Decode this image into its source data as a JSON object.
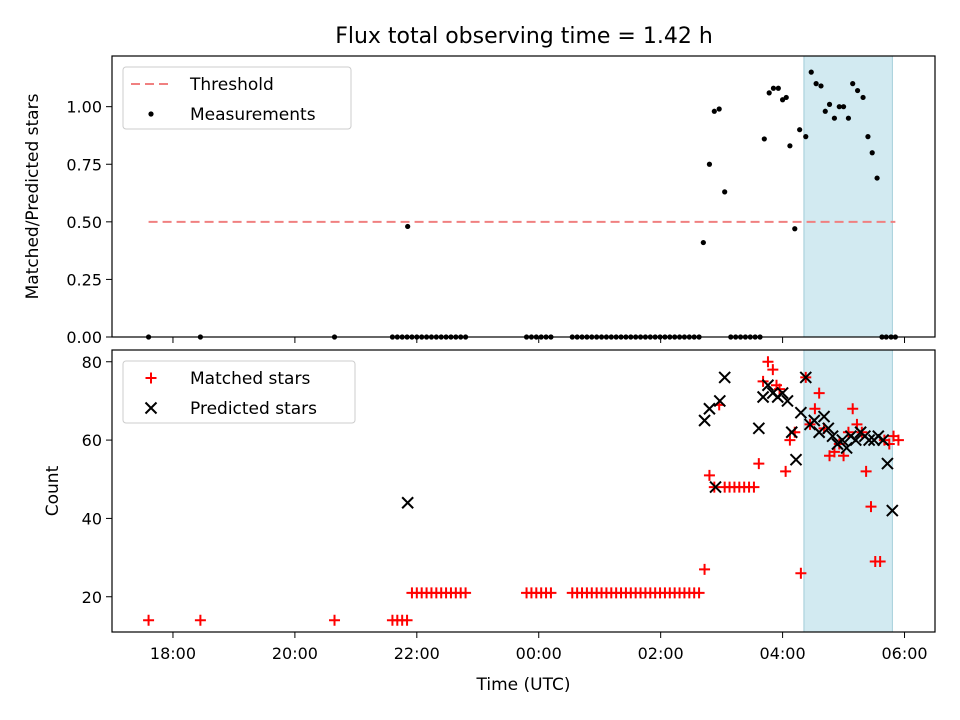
{
  "title": "Flux total observing time = 1.42 h",
  "xlabel": "Time (UTC)",
  "xticks": [
    {
      "h": 18,
      "label": "18:00"
    },
    {
      "h": 20,
      "label": "20:00"
    },
    {
      "h": 22,
      "label": "22:00"
    },
    {
      "h": 24,
      "label": "00:00"
    },
    {
      "h": 26,
      "label": "02:00"
    },
    {
      "h": 28,
      "label": "04:00"
    },
    {
      "h": 30,
      "label": "06:00"
    }
  ],
  "colors": {
    "threshold": "#f08080",
    "measurements": "#000000",
    "matched": "#ff0000",
    "predicted": "#000000",
    "span": "#add8e6"
  },
  "chart_data": [
    {
      "type": "scatter",
      "panel": "top",
      "ylabel": "Matched/Predicted stars",
      "xlim": [
        17.0,
        30.5
      ],
      "ylim": [
        0,
        1.22
      ],
      "yticks": [
        0.0,
        0.25,
        0.5,
        0.75,
        1.0
      ],
      "ytick_labels": [
        "0.00",
        "0.25",
        "0.50",
        "0.75",
        "1.00"
      ],
      "legend": {
        "position": "upper-left",
        "entries": [
          "Threshold",
          "Measurements"
        ]
      },
      "shaded_region_hours": [
        28.35,
        29.8
      ],
      "threshold": {
        "name": "Threshold",
        "value": 0.5,
        "x_range_hours": [
          17.6,
          29.85
        ]
      },
      "series": [
        {
          "name": "Measurements",
          "x_hours": [
            17.6,
            18.45,
            20.65,
            21.6,
            21.68,
            21.76,
            21.84,
            21.92,
            22.0,
            22.08,
            22.16,
            22.24,
            22.32,
            22.4,
            22.48,
            22.56,
            22.64,
            22.72,
            22.8,
            23.8,
            23.88,
            23.96,
            24.04,
            24.12,
            24.2,
            24.55,
            24.63,
            24.71,
            24.79,
            24.87,
            24.95,
            25.03,
            25.11,
            25.19,
            25.27,
            25.35,
            25.43,
            25.51,
            25.59,
            25.67,
            25.75,
            25.83,
            25.91,
            25.99,
            26.07,
            26.15,
            26.23,
            26.31,
            26.39,
            26.47,
            26.55,
            26.63,
            27.15,
            27.23,
            27.31,
            27.39,
            27.47,
            27.55,
            27.63,
            21.85,
            26.7,
            26.8,
            26.88,
            26.96,
            27.05,
            27.7,
            27.78,
            27.85,
            27.93,
            28.0,
            28.06,
            28.12,
            28.2,
            28.28,
            28.38,
            28.47,
            28.55,
            28.63,
            28.7,
            28.77,
            28.85,
            28.93,
            29.0,
            29.08,
            29.15,
            29.23,
            29.32,
            29.4,
            29.47,
            29.55,
            29.63,
            29.7,
            29.78,
            29.85
          ],
          "y": [
            0,
            0,
            0,
            0,
            0,
            0,
            0,
            0,
            0,
            0,
            0,
            0,
            0,
            0,
            0,
            0,
            0,
            0,
            0,
            0,
            0,
            0,
            0,
            0,
            0,
            0,
            0,
            0,
            0,
            0,
            0,
            0,
            0,
            0,
            0,
            0,
            0,
            0,
            0,
            0,
            0,
            0,
            0,
            0,
            0,
            0,
            0,
            0,
            0,
            0,
            0,
            0,
            0,
            0,
            0,
            0,
            0,
            0,
            0,
            0.48,
            0.41,
            0.75,
            0.98,
            0.99,
            0.63,
            0.86,
            1.06,
            1.08,
            1.08,
            1.03,
            1.04,
            0.83,
            0.47,
            0.9,
            0.87,
            1.15,
            1.1,
            1.09,
            0.98,
            1.01,
            0.95,
            1.0,
            1.0,
            0.95,
            1.1,
            1.07,
            1.04,
            0.87,
            0.8,
            0.69,
            0.0,
            0.0,
            0.0,
            0.0
          ]
        }
      ]
    },
    {
      "type": "scatter",
      "panel": "bottom",
      "ylabel": "Count",
      "xlabel": "Time (UTC)",
      "xlim": [
        17.0,
        30.5
      ],
      "ylim": [
        11,
        83
      ],
      "yticks": [
        20,
        40,
        60,
        80
      ],
      "ytick_labels": [
        "20",
        "40",
        "60",
        "80"
      ],
      "legend": {
        "position": "upper-left",
        "entries": [
          "Matched stars",
          "Predicted stars"
        ]
      },
      "shaded_region_hours": [
        28.35,
        29.8
      ],
      "series": [
        {
          "name": "Matched stars",
          "marker": "plus",
          "x_hours": [
            17.6,
            18.45,
            20.65,
            21.6,
            21.68,
            21.76,
            21.84,
            21.92,
            22.0,
            22.08,
            22.16,
            22.24,
            22.32,
            22.4,
            22.48,
            22.56,
            22.64,
            22.72,
            22.8,
            23.8,
            23.88,
            23.96,
            24.04,
            24.12,
            24.2,
            24.55,
            24.63,
            24.71,
            24.79,
            24.87,
            24.95,
            25.03,
            25.11,
            25.19,
            25.27,
            25.35,
            25.43,
            25.51,
            25.59,
            25.67,
            25.75,
            25.83,
            25.91,
            25.99,
            26.07,
            26.15,
            26.23,
            26.31,
            26.39,
            26.47,
            26.55,
            26.63,
            26.72,
            26.8,
            26.88,
            26.96,
            27.05,
            27.13,
            27.21,
            27.29,
            27.37,
            27.45,
            27.53,
            27.61,
            27.68,
            27.76,
            27.84,
            27.9,
            27.95,
            28.05,
            28.12,
            28.2,
            28.3,
            28.38,
            28.45,
            28.53,
            28.6,
            28.68,
            28.77,
            28.85,
            28.93,
            29.0,
            29.08,
            29.15,
            29.22,
            29.3,
            29.37,
            29.45,
            29.52,
            29.6,
            29.67,
            29.75,
            29.82,
            29.9
          ],
          "y": [
            14,
            14,
            14,
            14,
            14,
            14,
            14,
            21,
            21,
            21,
            21,
            21,
            21,
            21,
            21,
            21,
            21,
            21,
            21,
            21,
            21,
            21,
            21,
            21,
            21,
            21,
            21,
            21,
            21,
            21,
            21,
            21,
            21,
            21,
            21,
            21,
            21,
            21,
            21,
            21,
            21,
            21,
            21,
            21,
            21,
            21,
            21,
            21,
            21,
            21,
            21,
            21,
            27,
            51,
            48,
            69,
            48,
            48,
            48,
            48,
            48,
            48,
            48,
            54,
            75,
            80,
            78,
            74,
            73,
            52,
            60,
            62,
            26,
            76,
            64,
            68,
            72,
            63,
            56,
            57,
            59,
            56,
            62,
            68,
            64,
            62,
            52,
            43,
            29,
            29,
            60,
            59,
            61,
            60
          ]
        },
        {
          "name": "Predicted stars",
          "marker": "x",
          "x_hours": [
            21.85,
            26.72,
            26.8,
            26.9,
            26.97,
            27.05,
            27.61,
            27.68,
            27.76,
            27.84,
            27.92,
            28.0,
            28.08,
            28.15,
            28.22,
            28.3,
            28.38,
            28.45,
            28.52,
            28.6,
            28.68,
            28.75,
            28.82,
            28.9,
            28.98,
            29.05,
            29.12,
            29.2,
            29.28,
            29.35,
            29.42,
            29.5,
            29.57,
            29.65,
            29.72,
            29.8
          ],
          "y": [
            44,
            65,
            68,
            48,
            70,
            76,
            63,
            71,
            74,
            72,
            71,
            72,
            70,
            62,
            55,
            67,
            76,
            64,
            65,
            62,
            66,
            63,
            61,
            59,
            60,
            58,
            61,
            60,
            62,
            61,
            60,
            60,
            61,
            60,
            54,
            42
          ]
        }
      ]
    }
  ]
}
